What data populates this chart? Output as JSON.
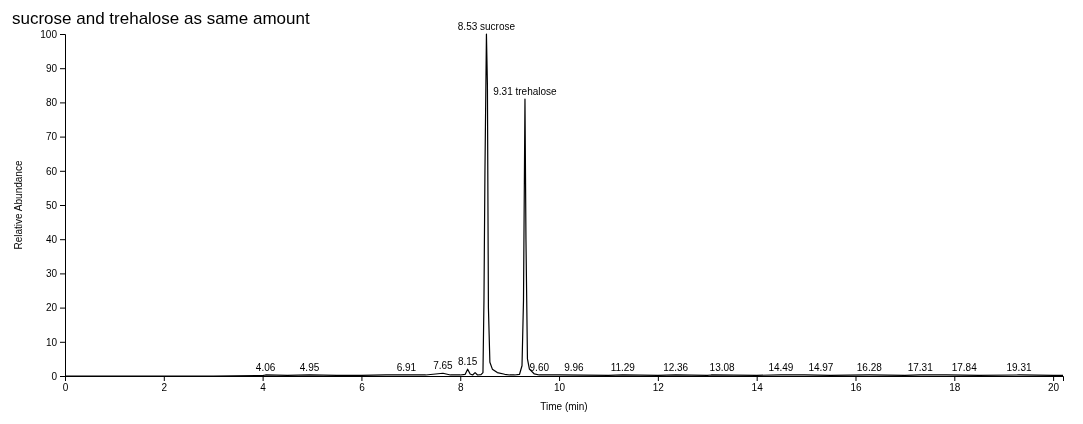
{
  "chart_data": {
    "type": "line",
    "title": "sucrose and trehalose as same amount",
    "xlabel": "Time (min)",
    "ylabel": "Relative Abundance",
    "xlim": [
      0,
      20.2
    ],
    "xticks": [
      0,
      2,
      4,
      6,
      8,
      10,
      12,
      14,
      16,
      18,
      20
    ],
    "ylim": [
      0,
      100
    ],
    "yticks": [
      0,
      10,
      20,
      30,
      40,
      50,
      60,
      70,
      80,
      90,
      100
    ],
    "grid": false,
    "series": [
      {
        "color": "#000000",
        "x": [
          0,
          1,
          2,
          3,
          4,
          4.06,
          4.5,
          4.95,
          5.5,
          6,
          6.5,
          6.91,
          7.3,
          7.65,
          7.8,
          8.0,
          8.1,
          8.15,
          8.2,
          8.25,
          8.3,
          8.35,
          8.42,
          8.46,
          8.48,
          8.5,
          8.53,
          8.55,
          8.57,
          8.6,
          8.65,
          8.75,
          8.9,
          9.0,
          9.1,
          9.2,
          9.25,
          9.28,
          9.31,
          9.33,
          9.36,
          9.4,
          9.5,
          9.6,
          10,
          11,
          11.29,
          12,
          12.36,
          13,
          13.08,
          14,
          14.49,
          14.97,
          15.5,
          16.28,
          17,
          17.31,
          17.84,
          18.5,
          19.31,
          20,
          20.2
        ],
        "values": [
          0,
          0,
          0,
          0,
          0.1,
          0.3,
          0.2,
          0.3,
          0.2,
          0.2,
          0.3,
          0.3,
          0.3,
          0.8,
          0.3,
          0.3,
          0.5,
          2,
          0.6,
          0.3,
          1,
          0.3,
          0.4,
          1,
          22,
          60,
          100,
          85,
          20,
          4,
          2,
          1,
          0.5,
          0.3,
          0.3,
          0.5,
          3,
          22,
          81,
          40,
          5,
          2,
          0.6,
          0.3,
          0.3,
          0.2,
          0.3,
          0.2,
          0.3,
          0.2,
          0.3,
          0.2,
          0.3,
          0.3,
          0.2,
          0.3,
          0.2,
          0.3,
          0.3,
          0.2,
          0.3,
          0.2,
          0.2
        ]
      }
    ],
    "annotations": [
      {
        "text": "4.06",
        "x": 4.06,
        "y": 0.3
      },
      {
        "text": "4.95",
        "x": 4.95,
        "y": 0.3
      },
      {
        "text": "6.91",
        "x": 6.91,
        "y": 0.3
      },
      {
        "text": "7.65",
        "x": 7.65,
        "y": 0.8
      },
      {
        "text": "8.15",
        "x": 8.15,
        "y": 2
      },
      {
        "text": "8.53 sucrose",
        "x": 8.53,
        "y": 100
      },
      {
        "text": "9.31 trehalose",
        "x": 9.31,
        "y": 81
      },
      {
        "text": "9.60",
        "x": 9.6,
        "y": 0.3
      },
      {
        "text": "9.96",
        "x": 10.3,
        "y": 0.3
      },
      {
        "text": "11.29",
        "x": 11.29,
        "y": 0.3
      },
      {
        "text": "12.36",
        "x": 12.36,
        "y": 0.3
      },
      {
        "text": "13.08",
        "x": 13.3,
        "y": 0.3
      },
      {
        "text": "14.49",
        "x": 14.49,
        "y": 0.3
      },
      {
        "text": "14.97",
        "x": 15.3,
        "y": 0.3
      },
      {
        "text": "16.28",
        "x": 16.28,
        "y": 0.3
      },
      {
        "text": "17.31",
        "x": 17.31,
        "y": 0.3
      },
      {
        "text": "17.84",
        "x": 18.2,
        "y": 0.3
      },
      {
        "text": "19.31",
        "x": 19.31,
        "y": 0.3
      }
    ]
  }
}
